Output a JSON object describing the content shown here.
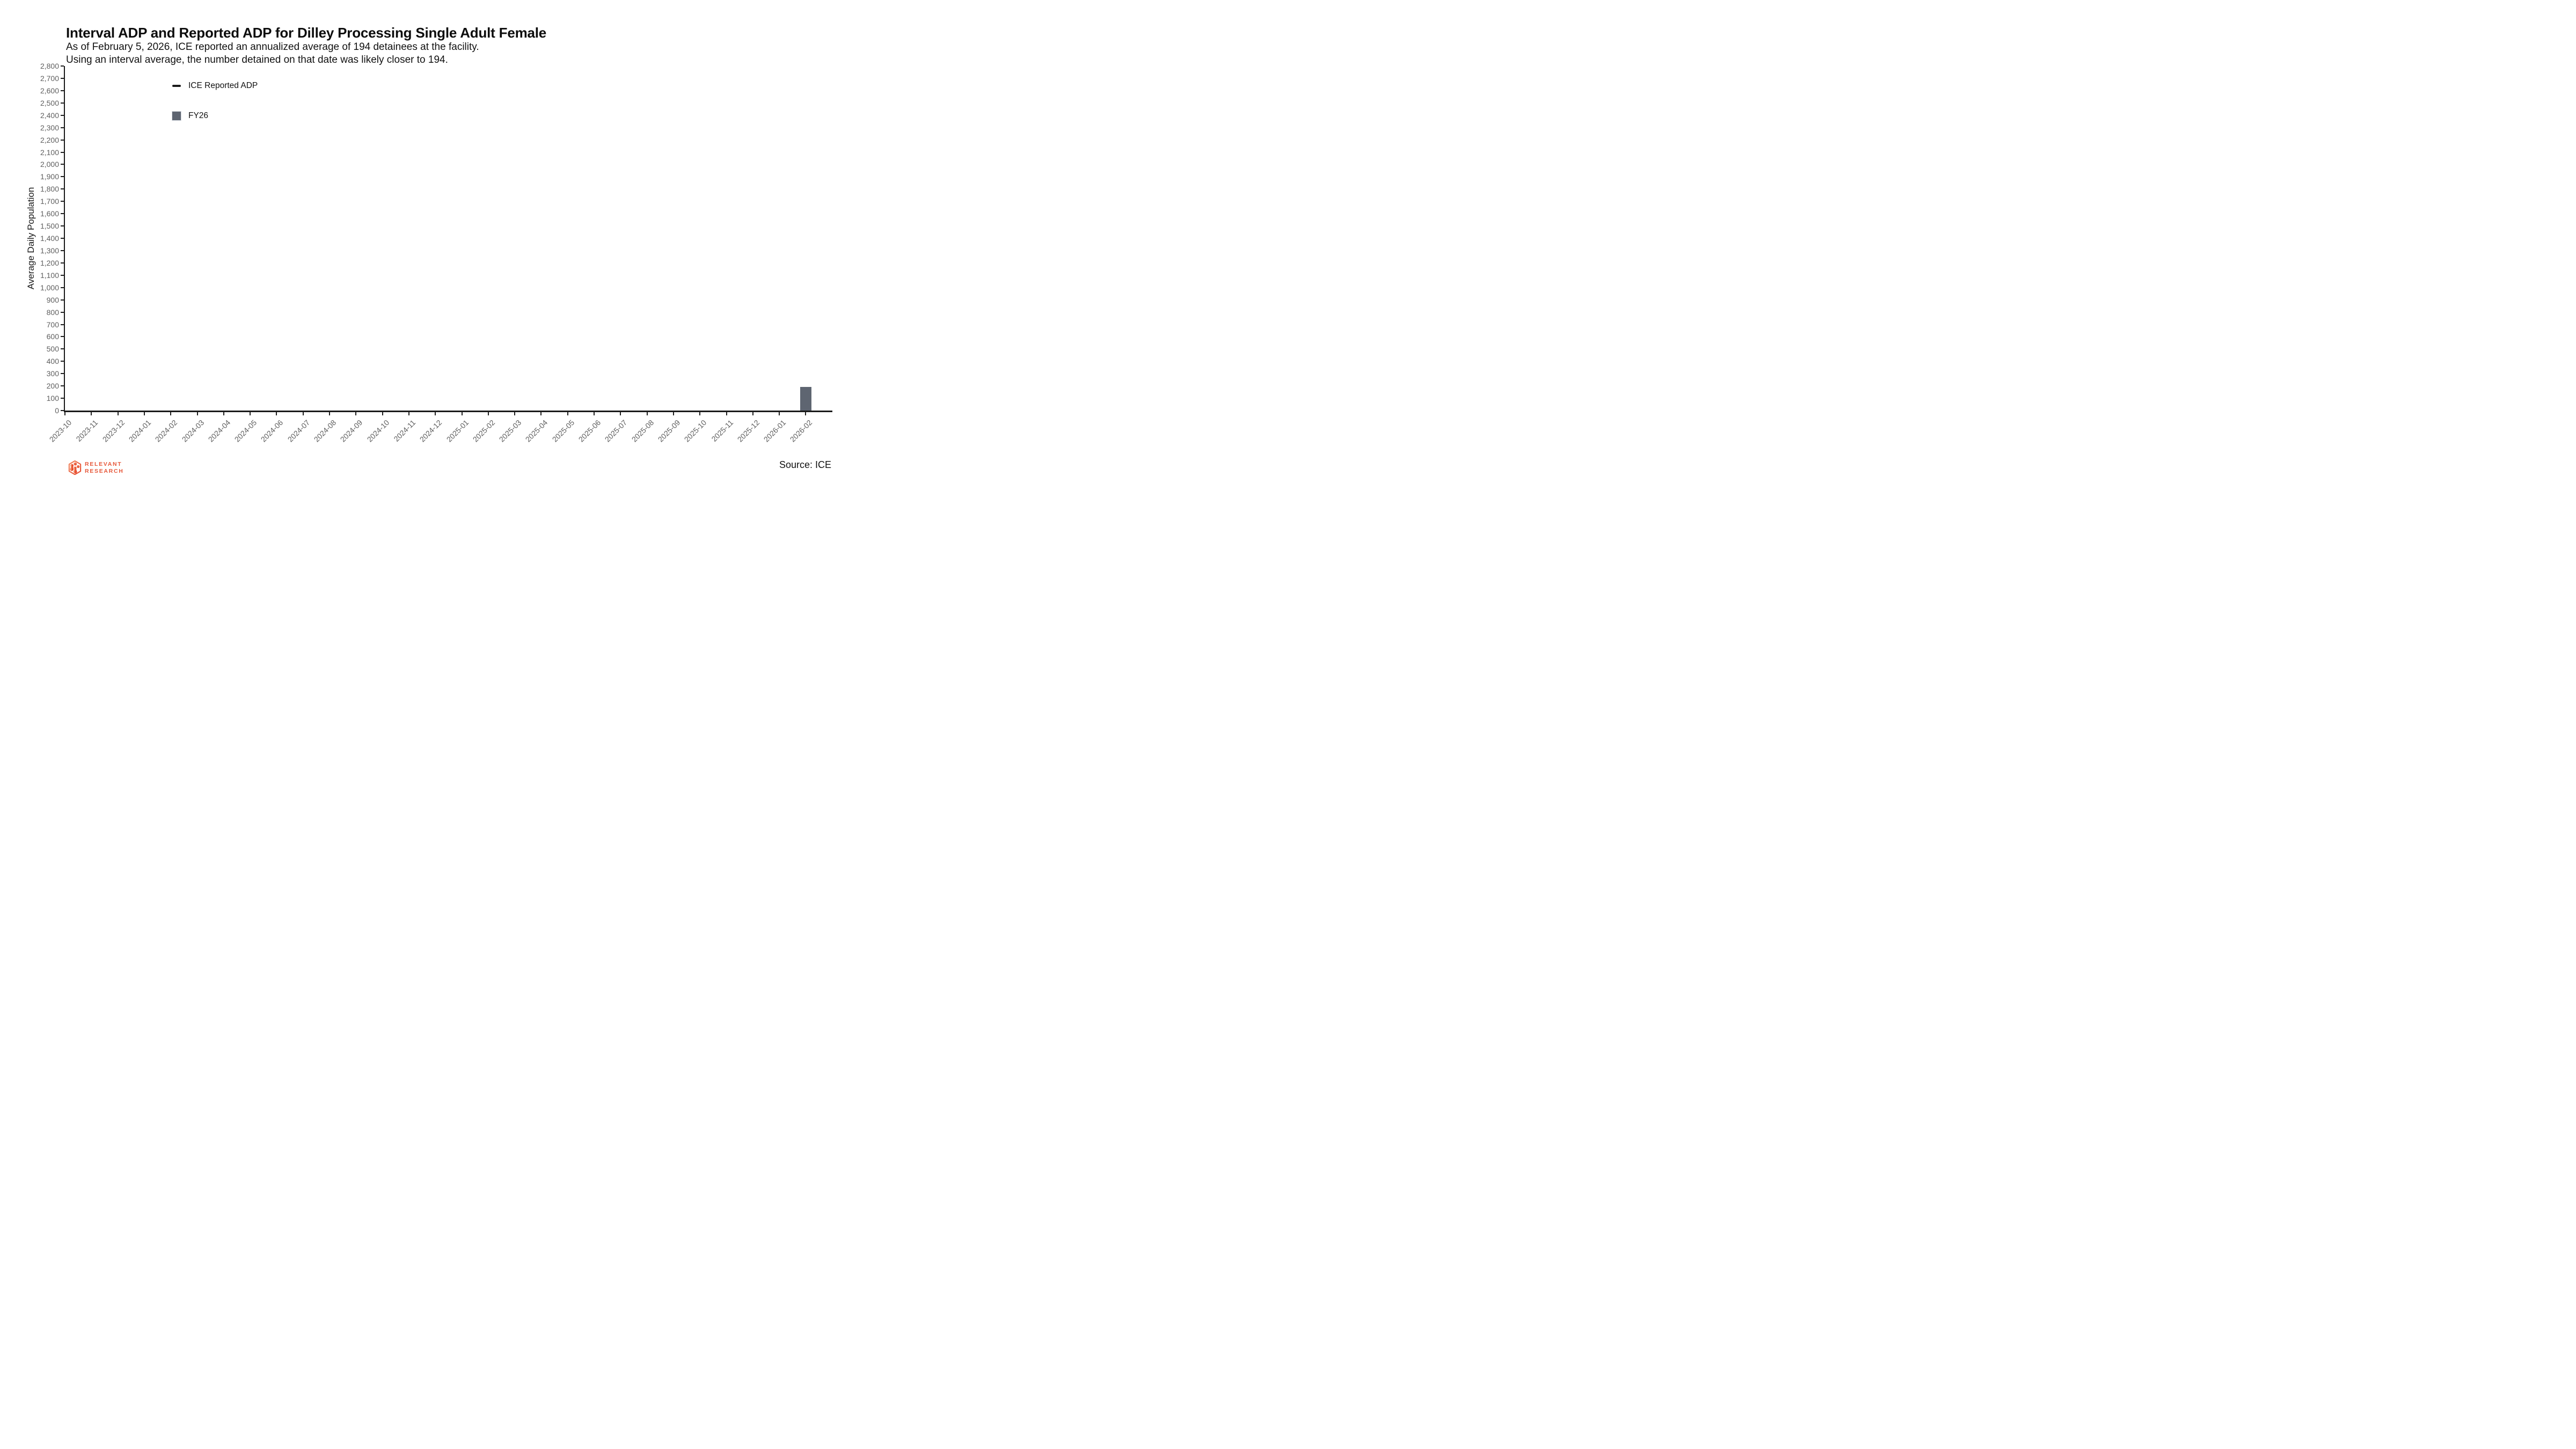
{
  "header": {
    "title": "Interval ADP and Reported ADP for Dilley Processing Single Adult Female",
    "subtitle_line1": "As of February 5, 2026, ICE reported an annualized average of 194 detainees at the facility.",
    "subtitle_line2": "Using an interval average, the number detained on that date was likely closer to 194."
  },
  "legend": {
    "items": [
      {
        "label": "ICE Reported ADP",
        "swatch": "line",
        "color": "#1a1a1a"
      },
      {
        "label": "FY26",
        "swatch": "square",
        "color": "#5e6571"
      }
    ]
  },
  "chart_data": {
    "type": "bar",
    "title": "Interval ADP and Reported ADP for Dilley Processing Single Adult Female",
    "xlabel": "",
    "ylabel": "Average Daily Population",
    "ylim": [
      0,
      2800
    ],
    "ytick_step": 100,
    "grid": false,
    "legend_position": "upper-left-inside",
    "categories": [
      "2023-10",
      "2023-11",
      "2023-12",
      "2024-01",
      "2024-02",
      "2024-03",
      "2024-04",
      "2024-05",
      "2024-06",
      "2024-07",
      "2024-08",
      "2024-09",
      "2024-10",
      "2024-11",
      "2024-12",
      "2025-01",
      "2025-02",
      "2025-03",
      "2025-04",
      "2025-05",
      "2025-06",
      "2025-07",
      "2025-08",
      "2025-09",
      "2025-10",
      "2025-11",
      "2025-12",
      "2026-01",
      "2026-02"
    ],
    "series": [
      {
        "name": "ICE Reported ADP",
        "type": "line",
        "color": "#1a1a1a",
        "values": [
          null,
          null,
          null,
          null,
          null,
          null,
          null,
          null,
          null,
          null,
          null,
          null,
          null,
          null,
          null,
          null,
          null,
          null,
          null,
          null,
          null,
          null,
          null,
          null,
          null,
          null,
          null,
          null,
          null
        ]
      },
      {
        "name": "FY26",
        "type": "bar",
        "color": "#5e6571",
        "values": [
          null,
          null,
          null,
          null,
          null,
          null,
          null,
          null,
          null,
          null,
          null,
          null,
          null,
          null,
          null,
          null,
          null,
          null,
          null,
          null,
          null,
          null,
          null,
          null,
          null,
          null,
          null,
          null,
          194
        ]
      }
    ]
  },
  "footer": {
    "brand_line1": "RELEVANT",
    "brand_line2": "RESEARCH",
    "brand_color": "#e7583a",
    "source": "Source: ICE"
  }
}
